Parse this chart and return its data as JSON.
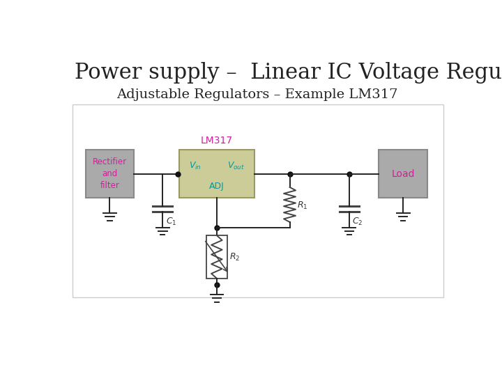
{
  "title": "Power supply –  Linear IC Voltage Regulators",
  "subtitle": "Adjustable Regulators – Example LM317",
  "bg_color": "#ffffff",
  "diagram_bg": "#ffffff",
  "diagram_border": "#cccccc",
  "rectifier_box_color": "#aaaaaa",
  "rectifier_box_edge": "#888888",
  "rectifier_text": "Rectifier\nand\nfilter",
  "rectifier_text_color": "#cc2299",
  "lm317_box_color": "#cccc99",
  "lm317_box_edge": "#999966",
  "lm317_label": "LM317",
  "lm317_label_color": "#cc2299",
  "lm317_vin_color": "#009999",
  "lm317_vout_color": "#009999",
  "lm317_adj_color": "#009999",
  "load_box_color": "#aaaaaa",
  "load_box_edge": "#888888",
  "load_text": "Load",
  "load_text_color": "#cc2299",
  "wire_color": "#222222",
  "resistor_color": "#444444",
  "capacitor_color": "#444444",
  "node_color": "#111111",
  "title_fontsize": 22,
  "subtitle_fontsize": 14
}
